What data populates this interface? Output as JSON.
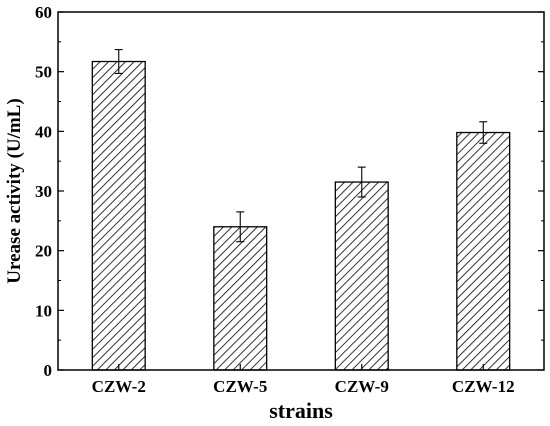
{
  "chart_data": {
    "type": "bar",
    "categories": [
      "CZW-2",
      "CZW-5",
      "CZW-9",
      "CZW-12"
    ],
    "values": [
      51.7,
      24.0,
      31.5,
      39.8
    ],
    "errors": [
      2.0,
      2.5,
      2.5,
      1.8
    ],
    "xlabel": "strains",
    "ylabel": "Urease activity (U/mL)",
    "ylim": [
      0,
      60
    ],
    "yticks": [
      0,
      10,
      20,
      30,
      40,
      50,
      60
    ],
    "grid": false,
    "bar_fill": "hatched",
    "colors": {
      "bar_stroke": "#000000",
      "hatch": "#000000",
      "background": "#ffffff"
    }
  }
}
